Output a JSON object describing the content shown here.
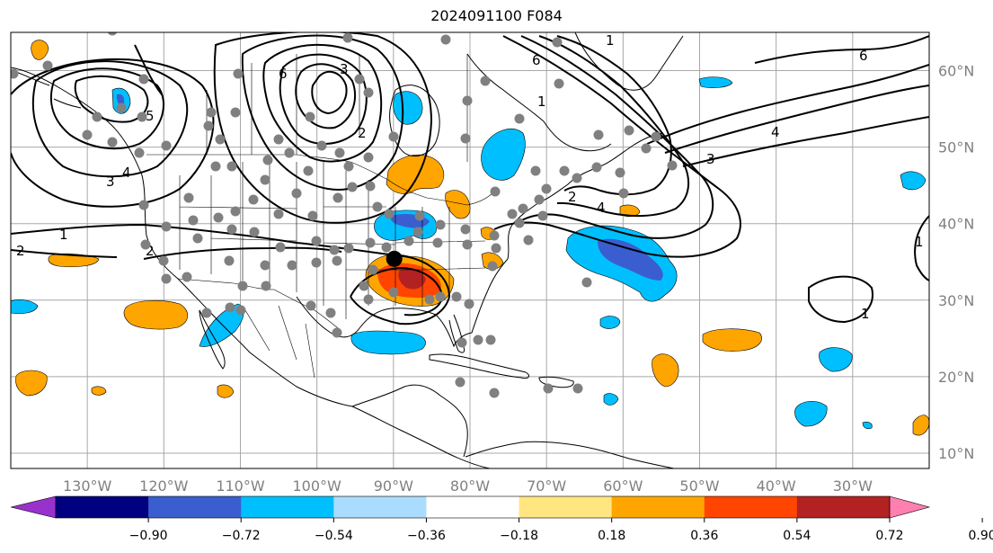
{
  "title": "2024091100 F084",
  "map": {
    "lon_range": [
      -140,
      -20
    ],
    "lat_range": [
      8,
      65
    ],
    "lon_ticks": [
      "130°W",
      "120°W",
      "110°W",
      "100°W",
      "90°W",
      "80°W",
      "70°W",
      "60°W",
      "50°W",
      "40°W",
      "30°W"
    ],
    "lat_ticks": [
      "60°N",
      "50°N",
      "40°N",
      "30°N",
      "20°N",
      "10°N"
    ],
    "gridlines": true,
    "land_outline_color": "#000000",
    "contour_color": "#000000",
    "contour_labels": [
      "6",
      "6",
      "5",
      "4",
      "3",
      "2",
      "1",
      "1",
      "1",
      "2",
      "3",
      "4",
      "6",
      "2",
      "1",
      "4",
      "1",
      "2",
      "3"
    ],
    "storm_center": {
      "lon": -89.9,
      "lat": 35.4,
      "color": "#000000"
    },
    "station_dot_color": "#808080"
  },
  "colorbar": {
    "colors": [
      "#9932cc",
      "#000080",
      "#3a5ecf",
      "#00bfff",
      "#aadcff",
      "#ffffff",
      "#ffe680",
      "#ffa500",
      "#ff4500",
      "#b22222",
      "#ff7fb0"
    ],
    "labels": [
      "−0.90",
      "−0.72",
      "−0.54",
      "−0.36",
      "−0.18",
      "0.18",
      "0.36",
      "0.54",
      "0.72",
      "0.90"
    ]
  },
  "colors": {
    "neg_strong": "#3a5ecf",
    "neg_medium": "#00bfff",
    "pos_medium": "#ffa500",
    "pos_strong": "#ff4500",
    "pos_extreme": "#b22222"
  }
}
